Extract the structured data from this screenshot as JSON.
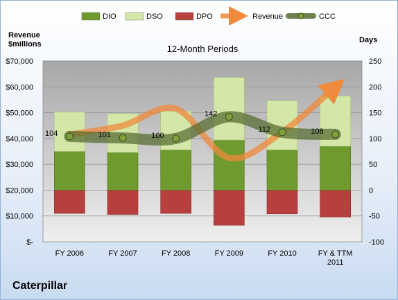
{
  "header": {
    "company": "Caterpillar",
    "left_axis_title": "Revenue\n$millions",
    "right_axis_title": "Days"
  },
  "colors": {
    "dio": "#6f9a2e",
    "dso": "#d4e6a8",
    "dpo": "#b7403e",
    "revenue": "#f08a3c",
    "ccc": "#556b2f",
    "plot_top": "#a7a7a7",
    "plot_bottom": "#efefef"
  },
  "chart_data": {
    "type": "bar",
    "title": "12-Month Periods",
    "categories": [
      "FY 2006",
      "FY 2007",
      "FY 2008",
      "FY 2009",
      "FY 2010",
      "FY & TTM\n2011"
    ],
    "left_axis": {
      "label": "Revenue $millions",
      "ylim": [
        0,
        70000
      ],
      "ticks": [
        "$-",
        "$10,000",
        "$20,000",
        "$30,000",
        "$40,000",
        "$50,000",
        "$60,000",
        "$70,000"
      ]
    },
    "right_axis": {
      "label": "Days",
      "ylim": [
        -100,
        250
      ],
      "ticks": [
        "-100",
        "-50",
        "0",
        "50",
        "100",
        "150",
        "200",
        "250"
      ]
    },
    "series": [
      {
        "name": "DIO",
        "type": "bar",
        "axis": "days",
        "values": [
          75,
          73,
          78,
          97,
          78,
          85
        ]
      },
      {
        "name": "DSO",
        "type": "bar",
        "axis": "days",
        "values": [
          76,
          75,
          75,
          121,
          95,
          97
        ]
      },
      {
        "name": "DPO",
        "type": "bar",
        "axis": "days",
        "values": [
          -45,
          -47,
          -45,
          -68,
          -46,
          -52
        ]
      },
      {
        "name": "Revenue",
        "type": "line",
        "axis": "revenue",
        "values": [
          41500,
          45000,
          51500,
          32500,
          42500,
          60000
        ]
      },
      {
        "name": "CCC",
        "type": "line",
        "axis": "days",
        "values": [
          104,
          101,
          100,
          142,
          112,
          108
        ],
        "labels": [
          "104",
          "101",
          "100",
          "142",
          "112",
          "108"
        ]
      }
    ],
    "legend": {
      "placement": "top"
    },
    "grid": true
  }
}
